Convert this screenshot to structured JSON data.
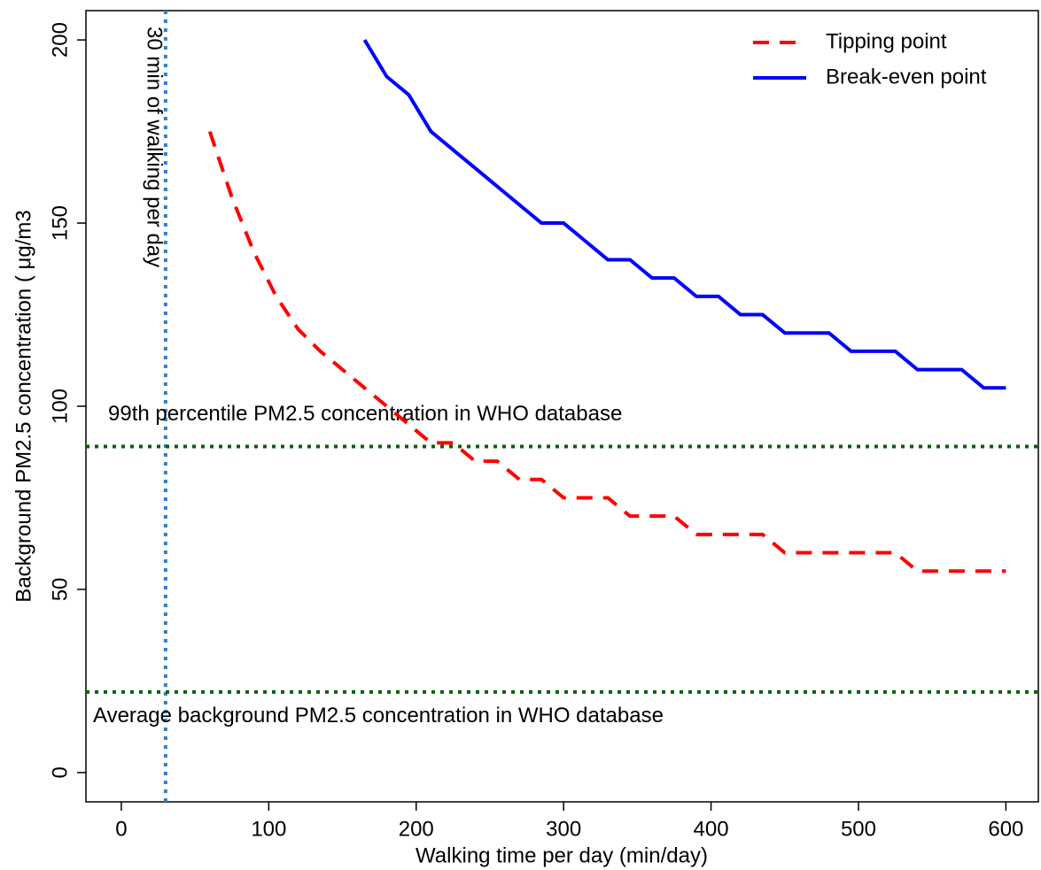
{
  "chart_data": {
    "type": "line",
    "x_label": "Walking time per day (min/day)",
    "y_label": "Background PM2.5 concentration ( μg/m3",
    "xlim": [
      -24,
      622
    ],
    "ylim": [
      -8,
      208
    ],
    "xticks": [
      0,
      100,
      200,
      300,
      400,
      500,
      600
    ],
    "yticks": [
      0,
      50,
      100,
      150,
      200
    ],
    "legend": "top-right",
    "x": [
      60,
      75,
      90,
      105,
      120,
      135,
      150,
      165,
      180,
      195,
      210,
      225,
      240,
      255,
      270,
      285,
      300,
      315,
      330,
      345,
      360,
      375,
      390,
      405,
      420,
      435,
      450,
      465,
      480,
      495,
      510,
      525,
      540,
      555,
      570,
      585,
      600
    ],
    "series": [
      {
        "name": "Tipping point",
        "color": "#ff0000",
        "dash": true,
        "values": [
          175,
          157,
          142,
          130,
          121,
          115,
          110,
          105,
          100,
          95,
          90,
          90,
          85,
          85,
          80,
          80,
          75,
          75,
          75,
          70,
          70,
          70,
          65,
          65,
          65,
          65,
          60,
          60,
          60,
          60,
          60,
          60,
          55,
          55,
          55,
          55,
          55
        ]
      },
      {
        "name": "Break-even point",
        "color": "#0000ff",
        "dash": false,
        "values": [
          null,
          null,
          null,
          null,
          null,
          null,
          null,
          200,
          190,
          185,
          175,
          170,
          165,
          160,
          155,
          150,
          150,
          145,
          140,
          140,
          135,
          135,
          130,
          130,
          125,
          125,
          120,
          120,
          120,
          115,
          115,
          115,
          110,
          110,
          110,
          105,
          105
        ]
      }
    ],
    "reference_lines": [
      {
        "axis": "x",
        "value": 30,
        "label": "30 min of walking per day",
        "color": "#2e7fd1"
      },
      {
        "axis": "y",
        "value": 89,
        "label": "99th percentile PM2.5 concentration in WHO database",
        "color": "#006400"
      },
      {
        "axis": "y",
        "value": 22,
        "label": "Average background PM2.5 concentration in WHO database",
        "color": "#006400"
      }
    ]
  }
}
